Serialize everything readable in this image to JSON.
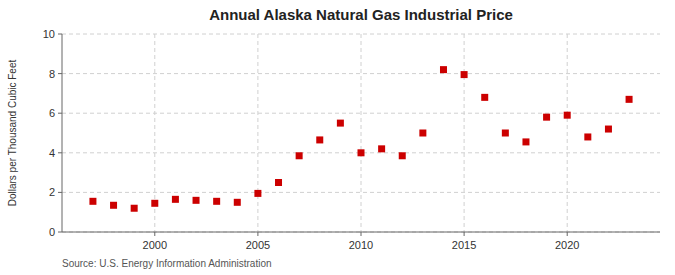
{
  "chart_data": {
    "type": "scatter",
    "title": "Annual Alaska Natural Gas Industrial Price",
    "y_label": "Dollars per Thousand Cubic Feet",
    "annotations": [
      "Source: U.S. Energy Information Administration"
    ],
    "x": [
      1997,
      1998,
      1999,
      2000,
      2001,
      2002,
      2003,
      2004,
      2005,
      2006,
      2007,
      2008,
      2009,
      2010,
      2011,
      2012,
      2013,
      2014,
      2015,
      2016,
      2017,
      2018,
      2019,
      2020,
      2021,
      2022,
      2023
    ],
    "values": [
      1.55,
      1.35,
      1.2,
      1.45,
      1.65,
      1.6,
      1.55,
      1.5,
      1.95,
      2.5,
      3.85,
      4.65,
      5.5,
      4.0,
      4.2,
      3.85,
      5.0,
      8.2,
      7.95,
      6.8,
      5.0,
      4.55,
      5.8,
      5.9,
      4.8,
      5.2,
      6.7
    ],
    "color": "#cc0000",
    "marker": "square",
    "xlim": [
      1995.5,
      2024.5
    ],
    "ylim": [
      0,
      10
    ],
    "xticks": [
      2000,
      2005,
      2010,
      2015,
      2020
    ],
    "yticks": [
      0,
      2,
      4,
      6,
      8,
      10
    ],
    "grid": true
  }
}
